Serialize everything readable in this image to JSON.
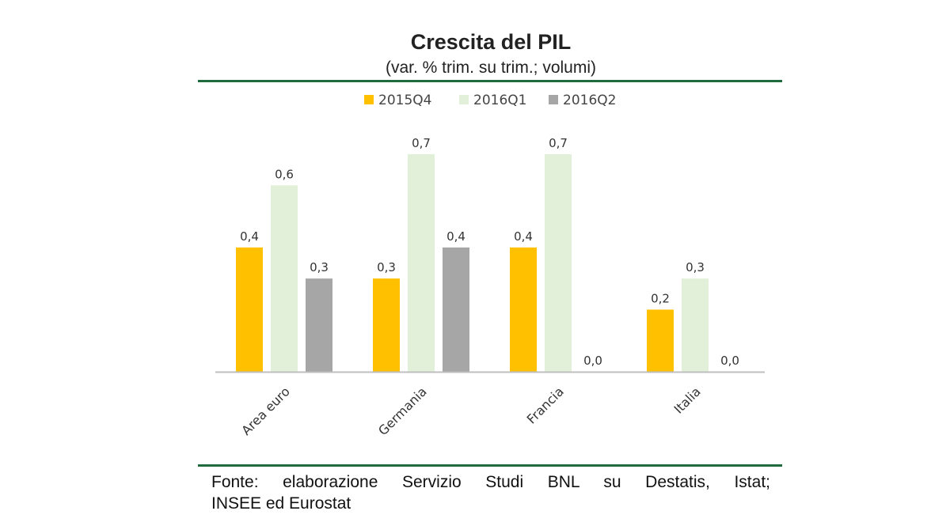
{
  "chart_data": {
    "type": "bar",
    "title": "Crescita del PIL",
    "subtitle": "(var. % trim. su trim.; volumi)",
    "categories": [
      "Area euro",
      "Germania",
      "Francia",
      "Italia"
    ],
    "series": [
      {
        "name": "2015Q4",
        "color": "#ffc000",
        "values": [
          0.4,
          0.3,
          0.4,
          0.2
        ],
        "labels": [
          "0,4",
          "0,3",
          "0,4",
          "0,2"
        ]
      },
      {
        "name": "2016Q1",
        "color": "#e2f0d9",
        "values": [
          0.6,
          0.7,
          0.7,
          0.3
        ],
        "labels": [
          "0,6",
          "0,7",
          "0,7",
          "0,3"
        ]
      },
      {
        "name": "2016Q2",
        "color": "#a6a6a6",
        "values": [
          0.3,
          0.4,
          0.0,
          0.0
        ],
        "labels": [
          "0,3",
          "0,4",
          "0,0",
          "0,0"
        ]
      }
    ],
    "ylim": [
      0,
      0.7
    ],
    "grid": false,
    "legend_position": "top-center"
  },
  "footer": {
    "line1": "Fonte: elaborazione Servizio Studi BNL su Destatis, Istat;",
    "line2": "INSEE ed Eurostat"
  },
  "colors": {
    "rule": "#1f6b3e",
    "axis": "#bfbfbf"
  }
}
